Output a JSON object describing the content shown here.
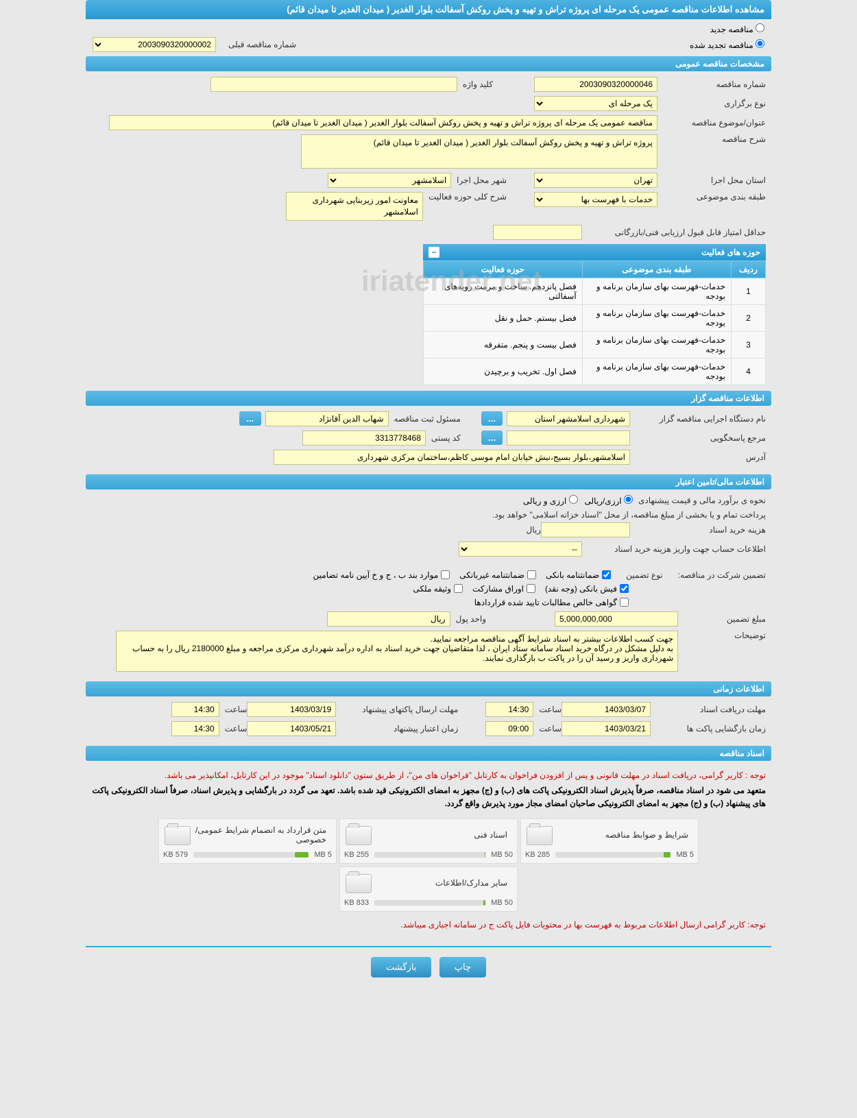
{
  "pageTitle": "مشاهده اطلاعات مناقصه عمومی یک مرحله ای پروژه تراش و تهیه و پخش روکش آسفالت بلوار الغدیر ( میدان الغدیر تا میدان قائم)",
  "topRadios": {
    "new": "مناقصه جدید",
    "renewed": "مناقصه تجدید شده",
    "prevLabel": "شماره مناقصه قبلی",
    "prevValue": "2003090320000002"
  },
  "sections": {
    "general": "مشخصات مناقصه عمومی",
    "organizer": "اطلاعات مناقصه گزار",
    "financial": "اطلاعات مالی/تامین اعتبار",
    "timing": "اطلاعات زمانی",
    "docs": "اسناد مناقصه"
  },
  "general": {
    "tenderNoLabel": "شماره مناقصه",
    "tenderNo": "2003090320000046",
    "keywordLabel": "کلید واژه",
    "keyword": "",
    "typeLabel": "نوع برگزاری",
    "typeValue": "یک مرحله ای",
    "subjectLabel": "عنوان/موضوع مناقصه",
    "subject": "مناقصه عمومی یک مرحله ای پروژه تراش و تهیه و پخش روکش آسفالت بلوار الغدیر ( میدان الغدیر تا میدان قائم)",
    "descLabel": "شرح مناقصه",
    "desc": "پروژه تراش و تهیه و پخش روکش آسفالت بلوار الغدیر ( میدان الغدیر تا میدان قائم)",
    "provinceLabel": "استان محل اجرا",
    "province": "تهران",
    "cityLabel": "شهر محل اجرا",
    "city": "اسلامشهر",
    "categoryLabel": "طبقه بندی موضوعی",
    "category": "خدمات با فهرست بها",
    "scopeDescLabel": "شرح کلی حوزه فعالیت",
    "scopeDesc": "معاونت امور زیربنایی شهرداری اسلامشهر",
    "minScoreLabel": "حداقل امتیاز قابل قبول ارزیابی فنی/بازرگانی",
    "minScore": ""
  },
  "gridTitle": "حوزه های فعالیت",
  "gridCols": {
    "row": "ردیف",
    "cat": "طبقه بندی موضوعی",
    "scope": "حوزه فعالیت"
  },
  "gridRows": [
    {
      "n": "1",
      "cat": "خدمات-فهرست بهای سازمان برنامه و بودجه",
      "scope": "فصل پانزدهم. ساخت و مرمت رویه‌های آسفالتی"
    },
    {
      "n": "2",
      "cat": "خدمات-فهرست بهای سازمان برنامه و بودجه",
      "scope": "فصل بیستم. حمل و نقل"
    },
    {
      "n": "3",
      "cat": "خدمات-فهرست بهای سازمان برنامه و بودجه",
      "scope": "فصل بیست و پنجم. متفرقه"
    },
    {
      "n": "4",
      "cat": "خدمات-فهرست بهای سازمان برنامه و بودجه",
      "scope": "فصل اول. تخریب و برچیدن"
    }
  ],
  "organizer": {
    "orgLabel": "نام دستگاه اجرایی مناقصه گزار",
    "org": "شهرداری اسلامشهر استان",
    "regLabel": "مسئول ثبت مناقصه",
    "reg": "شهاب الدین آقانژاد",
    "respLabel": "مرجع پاسخگویی",
    "resp": "",
    "postalLabel": "کد پستی",
    "postal": "3313778468",
    "addrLabel": "آدرس",
    "addr": "اسلامشهر،بلوار بسیج،نبش خیابان امام موسی کاظم،ساختمان مرکزی شهرداری"
  },
  "financial": {
    "methodLabel": "نحوه ی برآورد مالی و قیمت پیشنهادی",
    "opt1": "ارزی/ریالی",
    "opt2": "ارزی و ریالی",
    "payNote": "پرداخت تمام و یا بخشی از مبلغ مناقصه، از محل \"اسناد خزانه اسلامی\" خواهد بود.",
    "buyCostLabel": "هزینه خرید اسناد",
    "buyCostUnit": "ریال",
    "accountLabel": "اطلاعات حساب جهت واریز هزینه خرید اسناد",
    "accountValue": "--",
    "guaranteeLabel": "تضمین شرکت در مناقصه:",
    "guaranteeTypeLabel": "نوع تضمین",
    "c1": "ضمانتنامه بانکی",
    "c2": "ضمانتنامه غیربانکی",
    "c3": "موارد بند ب ، ج و خ آیین نامه تضامین",
    "c4": "فیش بانکی (وجه نقد)",
    "c5": "اوراق مشارکت",
    "c6": "وثیقه ملکی",
    "c7": "گواهی خالص مطالبات تایید شده قراردادها",
    "amountLabel": "مبلغ تضمین",
    "amount": "5,000,000,000",
    "unitLabel": "واحد پول",
    "unit": "ریال",
    "explainLabel": "توضیحات",
    "explain": "جهت کسب اطلاعات بیشتر به اسناد شرایط آگهی مناقصه مراجعه نمایید.\nبه دلیل مشکل در درگاه خرید اسناد سامانه ستاد ایران ، لذا متقاضیان جهت خرید اسناد به اداره درآمد شهرداری مرکزی مراجعه و مبلغ 2180000 ریال را به حساب شهرداری واریز و رسید آن را در پاکت ب بارگذاری نمایند."
  },
  "timing": {
    "recvLabel": "مهلت دریافت اسناد",
    "recvDate": "1403/03/07",
    "recvTime": "14:30",
    "sendLabel": "مهلت ارسال پاکتهای پیشنهاد",
    "sendDate": "1403/03/19",
    "sendTime": "14:30",
    "openLabel": "زمان بازگشایی پاکت ها",
    "openDate": "1403/03/21",
    "openTime": "09:00",
    "validLabel": "زمان اعتبار پیشنهاد",
    "validDate": "1403/05/21",
    "validTime": "14:30",
    "hourLabel": "ساعت"
  },
  "docs": {
    "note1": "توجه : کاربر گرامی، دریافت اسناد در مهلت قانونی و پس از افزودن فراخوان به کارتابل \"فراخوان های من\"، از طریق ستون \"دانلود اسناد\" موجود در این کارتابل، امکانپذیر می باشد.",
    "note2": "متعهد می شود در اسناد مناقصه، صرفاً پذیرش اسناد الکترونیکی پاکت های (ب) و (ج) مجهز به امضای الکترونیکی قید شده باشد. تعهد می گردد در بارگشایی و پذیرش اسناد، صرفاً اسناد الکترونیکی پاکت های پیشنهاد (ب) و (ج) مجهز به امضای الکترونیکی صاحبان امضای مجاز مورد پذیرش واقع گردد.",
    "note3": "توجه: کاربر گرامی ارسال اطلاعات مربوط به فهرست بها در محتویات فایل پاکت ج در سامانه اجباری میباشد."
  },
  "files": [
    {
      "title": "شرایط و ضوابط مناقصه",
      "used": "285 KB",
      "total": "5 MB",
      "pct": 6
    },
    {
      "title": "اسناد فنی",
      "used": "255 KB",
      "total": "50 MB",
      "pct": 1
    },
    {
      "title": "متن قرارداد به انضمام شرایط عمومی/خصوصی",
      "used": "579 KB",
      "total": "5 MB",
      "pct": 12
    },
    {
      "title": "سایر مدارک/اطلاعات",
      "used": "833 KB",
      "total": "50 MB",
      "pct": 2
    }
  ],
  "buttons": {
    "print": "چاپ",
    "back": "بازگشت",
    "ellipsis": "..."
  },
  "watermark": "iriatender.net"
}
